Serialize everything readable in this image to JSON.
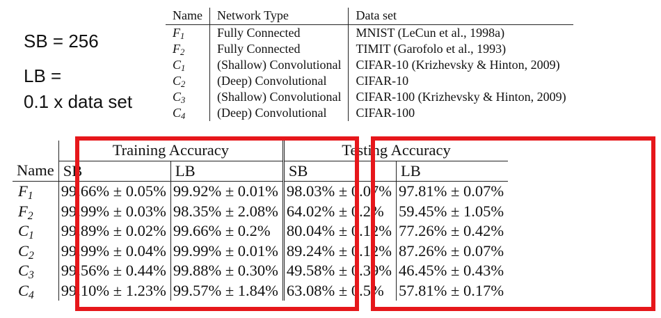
{
  "notes": {
    "sb": "SB = 256",
    "lb_line1": "LB =",
    "lb_line2": "0.1 x data set"
  },
  "networks": {
    "headers": [
      "Name",
      "Network Type",
      "Data set"
    ],
    "rows": [
      {
        "name": "F",
        "sub": "1",
        "type": "Fully Connected",
        "dataset": "MNIST (LeCun et al., 1998a)"
      },
      {
        "name": "F",
        "sub": "2",
        "type": "Fully Connected",
        "dataset": "TIMIT (Garofolo et al., 1993)"
      },
      {
        "name": "C",
        "sub": "1",
        "type": "(Shallow) Convolutional",
        "dataset": "CIFAR-10 (Krizhevsky & Hinton, 2009)"
      },
      {
        "name": "C",
        "sub": "2",
        "type": "(Deep) Convolutional",
        "dataset": "CIFAR-10"
      },
      {
        "name": "C",
        "sub": "3",
        "type": "(Shallow) Convolutional",
        "dataset": "CIFAR-100 (Krizhevsky & Hinton, 2009)"
      },
      {
        "name": "C",
        "sub": "4",
        "type": "(Deep) Convolutional",
        "dataset": "CIFAR-100"
      }
    ]
  },
  "accuracy": {
    "group_training": "Training Accuracy",
    "group_testing": "Testing Accuracy",
    "name_header": "Name",
    "sb": "SB",
    "lb": "LB",
    "rows": [
      {
        "name": "F",
        "sub": "1",
        "train_sb": "99.66% ± 0.05%",
        "train_lb": "99.92% ± 0.01%",
        "test_sb": "98.03% ± 0.07%",
        "test_lb": "97.81% ± 0.07%"
      },
      {
        "name": "F",
        "sub": "2",
        "train_sb": "99.99% ± 0.03%",
        "train_lb": "98.35% ± 2.08%",
        "test_sb": "64.02% ± 0.2%",
        "test_lb": "59.45% ± 1.05%"
      },
      {
        "name": "C",
        "sub": "1",
        "train_sb": "99.89% ± 0.02%",
        "train_lb": "99.66% ± 0.2%",
        "test_sb": "80.04% ± 0.12%",
        "test_lb": "77.26% ± 0.42%"
      },
      {
        "name": "C",
        "sub": "2",
        "train_sb": "99.99% ± 0.04%",
        "train_lb": "99.99% ± 0.01%",
        "test_sb": "89.24% ± 0.12%",
        "test_lb": "87.26% ± 0.07%"
      },
      {
        "name": "C",
        "sub": "3",
        "train_sb": "99.56% ± 0.44%",
        "train_lb": "99.88% ± 0.30%",
        "test_sb": "49.58% ± 0.39%",
        "test_lb": "46.45% ± 0.43%"
      },
      {
        "name": "C",
        "sub": "4",
        "train_sb": "99.10% ± 1.23%",
        "train_lb": "99.57% ± 1.84%",
        "test_sb": "63.08% ± 0.5%",
        "test_lb": "57.81% ± 0.17%"
      }
    ]
  },
  "highlight_color": "#e6171b"
}
